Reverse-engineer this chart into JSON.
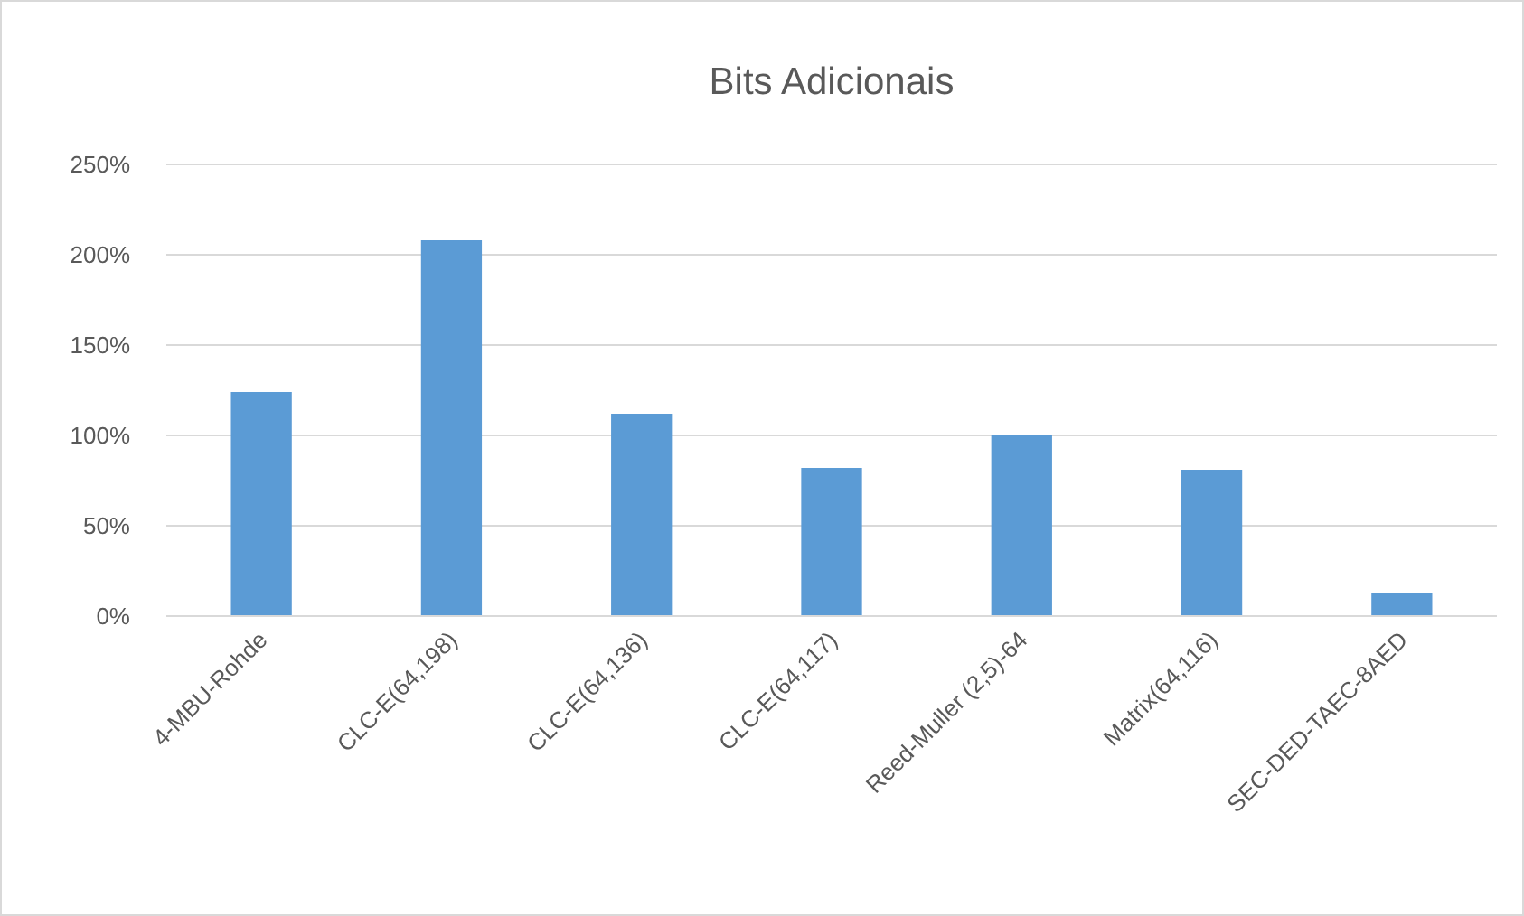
{
  "chart_data": {
    "type": "bar",
    "title": "Bits Adicionais",
    "categories": [
      "4-MBU-Rohde",
      "CLC-E(64,198)",
      "CLC-E(64,136)",
      "CLC-E(64,117)",
      "Reed-Muller (2,5)-64",
      "Matrix(64,116)",
      "SEC-DED-TAEC-8AED"
    ],
    "values": [
      124,
      208,
      112,
      82,
      100,
      81,
      13
    ],
    "color": "#5b9bd5",
    "ylim": [
      0,
      250
    ],
    "yticks": [
      {
        "value": 0,
        "label": "0%"
      },
      {
        "value": 50,
        "label": "50%"
      },
      {
        "value": 100,
        "label": "100%"
      },
      {
        "value": 150,
        "label": "150%"
      },
      {
        "value": 200,
        "label": "200%"
      },
      {
        "value": 250,
        "label": "250%"
      }
    ],
    "grid": "y"
  }
}
